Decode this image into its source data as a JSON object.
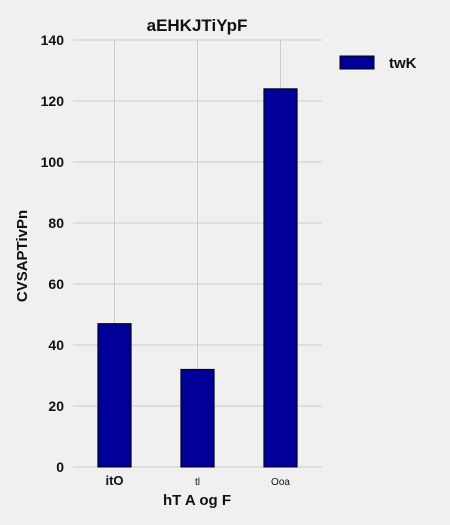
{
  "chart_data": {
    "type": "bar",
    "title": "aEHKJTiYpF",
    "xlabel": "hT A  og  F",
    "ylabel": "CVSAPTivPn",
    "categories": [
      "itO",
      "tl",
      "Ooa"
    ],
    "series": [
      {
        "name": "twK",
        "values": [
          47,
          32,
          124
        ]
      }
    ],
    "ylim": [
      0,
      140
    ],
    "yticks": [
      0,
      20,
      40,
      60,
      80,
      100,
      120,
      140
    ],
    "grid": true,
    "legend": "top-right",
    "colors": {
      "bar": "#000099",
      "bar_edge": "#000000",
      "grid": "#cbcbcb",
      "background": "#f0f0f0"
    }
  }
}
